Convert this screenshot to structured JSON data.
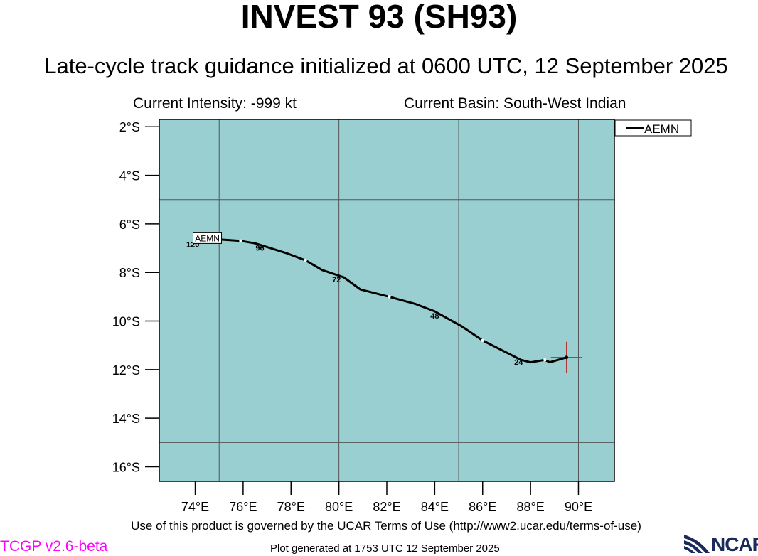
{
  "header": {
    "title": "INVEST 93 (SH93)",
    "subtitle": "Late-cycle track guidance initialized at 0600 UTC, 12 September 2025",
    "current_intensity": "Current Intensity: -999 kt",
    "current_basin": "Current Basin: South-West Indian"
  },
  "map": {
    "ocean_color": "#99cfd0",
    "lon_range": [
      72.5,
      91.5
    ],
    "lat_range": [
      -1.7,
      -16.6
    ],
    "x_ticks": [
      {
        "value": 74,
        "label": "74°E"
      },
      {
        "value": 76,
        "label": "76°E"
      },
      {
        "value": 78,
        "label": "78°E"
      },
      {
        "value": 80,
        "label": "80°E"
      },
      {
        "value": 82,
        "label": "82°E"
      },
      {
        "value": 84,
        "label": "84°E"
      },
      {
        "value": 86,
        "label": "86°E"
      },
      {
        "value": 88,
        "label": "88°E"
      },
      {
        "value": 90,
        "label": "90°E"
      }
    ],
    "y_ticks": [
      {
        "value": -2,
        "label": "2°S"
      },
      {
        "value": -4,
        "label": "4°S"
      },
      {
        "value": -6,
        "label": "6°S"
      },
      {
        "value": -8,
        "label": "8°S"
      },
      {
        "value": -10,
        "label": "10°S"
      },
      {
        "value": -12,
        "label": "12°S"
      },
      {
        "value": -14,
        "label": "14°S"
      },
      {
        "value": -16,
        "label": "16°S"
      }
    ],
    "grid_lon": [
      75,
      80,
      85,
      90
    ],
    "grid_lat": [
      -5,
      -10,
      -15
    ],
    "current_position": {
      "lon": 89.5,
      "lat": -11.5
    },
    "legend": {
      "entry": "AEMN",
      "placement": "top-right"
    }
  },
  "chart_data": {
    "type": "line",
    "series": [
      {
        "name": "AEMN",
        "points": [
          {
            "lon": 89.5,
            "lat": -11.5
          },
          {
            "lon": 88.8,
            "lat": -11.7
          },
          {
            "lon": 88.6,
            "lat": -11.6
          },
          {
            "lon": 88.0,
            "lat": -11.7
          },
          {
            "lon": 87.6,
            "lat": -11.6
          },
          {
            "lon": 87.0,
            "lat": -11.3
          },
          {
            "lon": 86.0,
            "lat": -10.8
          },
          {
            "lon": 85.1,
            "lat": -10.2
          },
          {
            "lon": 84.0,
            "lat": -9.6
          },
          {
            "lon": 83.2,
            "lat": -9.3
          },
          {
            "lon": 82.1,
            "lat": -9.0
          },
          {
            "lon": 80.9,
            "lat": -8.7
          },
          {
            "lon": 80.2,
            "lat": -8.2
          },
          {
            "lon": 79.3,
            "lat": -7.9
          },
          {
            "lon": 78.6,
            "lat": -7.5
          },
          {
            "lon": 77.8,
            "lat": -7.2
          },
          {
            "lon": 76.5,
            "lat": -6.8
          },
          {
            "lon": 75.9,
            "lat": -6.7
          },
          {
            "lon": 74.4,
            "lat": -6.6
          }
        ],
        "markers": [
          {
            "lon": 88.6,
            "lat": -11.6
          },
          {
            "lon": 86.0,
            "lat": -10.8
          },
          {
            "lon": 82.1,
            "lat": -9.0
          },
          {
            "lon": 78.6,
            "lat": -7.5
          },
          {
            "lon": 75.9,
            "lat": -6.7
          }
        ],
        "hour_labels": [
          {
            "label": "24",
            "lon": 87.5,
            "lat": -11.8
          },
          {
            "label": "48",
            "lon": 84.0,
            "lat": -9.9
          },
          {
            "label": "72",
            "lon": 79.9,
            "lat": -8.4
          },
          {
            "label": "96",
            "lon": 76.7,
            "lat": -7.1
          },
          {
            "label": "120",
            "lon": 73.9,
            "lat": -6.95
          }
        ],
        "end_label": {
          "label": "AEMN",
          "lon": 74.0,
          "lat": -6.6
        }
      }
    ]
  },
  "footer": {
    "terms": "Use of this product is governed by the UCAR Terms of Use (http://www2.ucar.edu/terms-of-use)",
    "version": "TCGP v2.6-beta",
    "generated": "Plot generated at 1753 UTC   12 September 2025",
    "logo_text": "NCAR"
  }
}
